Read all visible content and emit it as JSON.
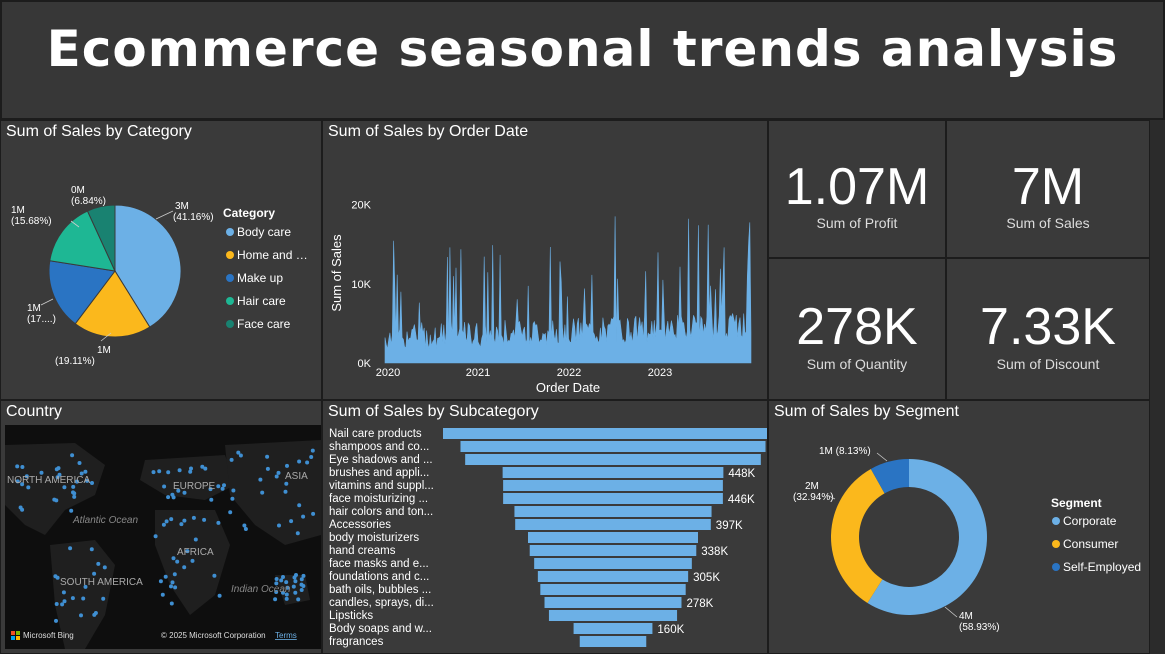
{
  "header": {
    "title": "Ecommerce seasonal trends analysis"
  },
  "colors": {
    "body_care": "#6cb0e6",
    "home": "#fbb81c",
    "makeup": "#2a74c3",
    "hair": "#1eb794",
    "face": "#198271",
    "bar": "#6cb0e6"
  },
  "category_chart": {
    "title": "Sum of Sales by Category",
    "legend_title": "Category",
    "chart_data": {
      "type": "pie",
      "categories": [
        "Body care",
        "Home and …",
        "Make up",
        "Hair care",
        "Face care"
      ],
      "values": [
        41.16,
        19.11,
        17.21,
        15.68,
        6.84
      ],
      "labels": [
        [
          "3M",
          "(41.16%)"
        ],
        [
          "1M",
          "(19.11%)"
        ],
        [
          "1M",
          "(17....)"
        ],
        [
          "1M",
          "(15.68%)"
        ],
        [
          "0M",
          "(6.84%)"
        ]
      ]
    }
  },
  "date_chart": {
    "title": "Sum of Sales by Order Date",
    "chart_data": {
      "type": "area",
      "xlabel": "Order Date",
      "ylabel": "Sum of Sales",
      "x_ticks": [
        "2020",
        "2021",
        "2022",
        "2023"
      ],
      "y_ticks": [
        "0K",
        "10K",
        "20K"
      ],
      "ylim": [
        0,
        23000
      ]
    }
  },
  "kpis": [
    {
      "value": "1.07M",
      "label": "Sum of Profit"
    },
    {
      "value": "7M",
      "label": "Sum of Sales"
    },
    {
      "value": "278K",
      "label": "Sum of Quantity"
    },
    {
      "value": "7.33K",
      "label": "Sum of Discount"
    }
  ],
  "map": {
    "title": "Country",
    "labels": [
      "NORTH AMERICA",
      "EUROPE",
      "ASIA",
      "AFRICA",
      "SOUTH AMERICA",
      "Atlantic Ocean",
      "Indian Ocean"
    ],
    "attribution": "Microsoft Bing",
    "copyright": "© 2025 Microsoft Corporation",
    "terms": "Terms"
  },
  "subcategory_chart": {
    "title": "Sum of Sales by Subcategory",
    "chart_data": {
      "type": "bar",
      "categories": [
        "Nail care products",
        "shampoos and co...",
        "Eye shadows and ...",
        "brushes and appli...",
        "vitamins and suppl...",
        "face moisturizing ...",
        "hair colors and ton...",
        "Accessories",
        "body moisturizers",
        "hand creams",
        "face masks and e...",
        "foundations and c...",
        "bath oils, bubbles ...",
        "candles, sprays, di...",
        "Lipsticks",
        "Body soaps and w...",
        "fragrances"
      ],
      "values": [
        690,
        619,
        600,
        448,
        446,
        446,
        400,
        397,
        345,
        338,
        320,
        305,
        295,
        278,
        260,
        160,
        135
      ],
      "value_labels": [
        "",
        "619K",
        "",
        "448K",
        "",
        "446K",
        "",
        "397K",
        "",
        "338K",
        "",
        "305K",
        "",
        "278K",
        "",
        "160K",
        ""
      ]
    }
  },
  "segment_chart": {
    "title": "Sum of Sales by Segment",
    "legend_title": "Segment",
    "chart_data": {
      "type": "pie",
      "categories": [
        "Corporate",
        "Consumer",
        "Self-Employed"
      ],
      "values": [
        58.93,
        32.94,
        8.13
      ],
      "labels": [
        [
          "4M",
          "(58.93%)"
        ],
        [
          "2M",
          "(32.94%)"
        ],
        [
          "1M (8.13%)"
        ]
      ]
    }
  }
}
